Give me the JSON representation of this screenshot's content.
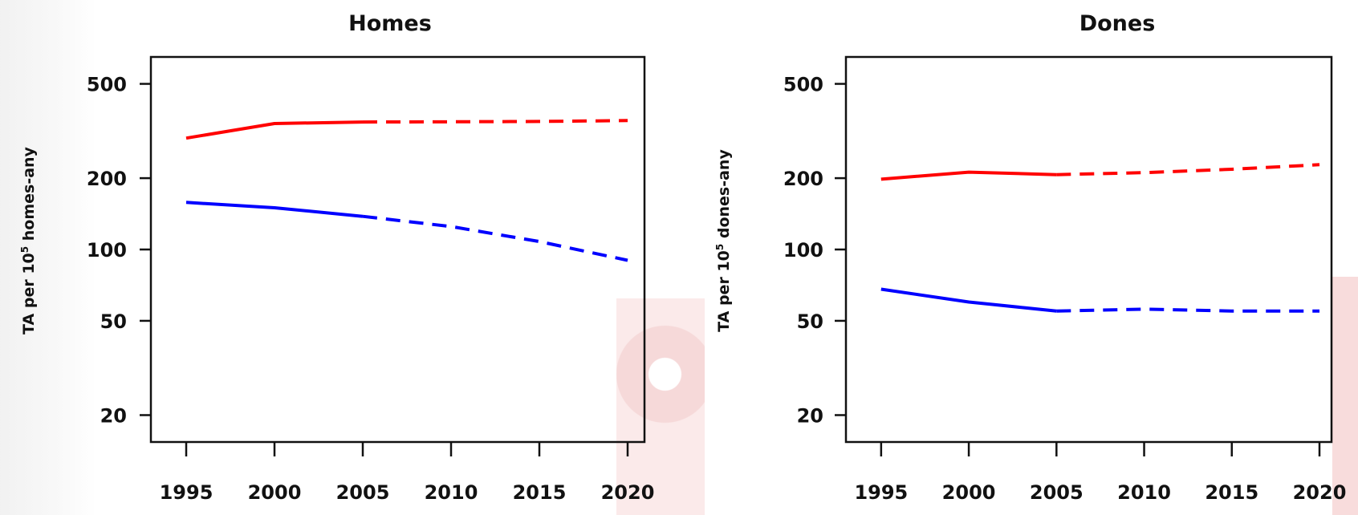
{
  "chart_data": [
    {
      "type": "line",
      "title": "Homes",
      "ylabel": {
        "pre": "TA per 10",
        "sup": "5",
        "post": " homes-any"
      },
      "y_scale": "log",
      "ylim": [
        18,
        560
      ],
      "yticks": [
        20,
        50,
        100,
        200,
        500
      ],
      "xlim": [
        1994,
        2020
      ],
      "xticks": [
        1995,
        2000,
        2005,
        2010,
        2015,
        2020
      ],
      "grid": false,
      "series": [
        {
          "color": "#ff0000",
          "segments": [
            {
              "style": "solid",
              "x": [
                1995,
                2000,
                2005
              ],
              "y": [
                295,
                340,
                345
              ]
            },
            {
              "style": "dashed",
              "x": [
                2005,
                2010,
                2015,
                2020
              ],
              "y": [
                345,
                346,
                347,
                350
              ]
            }
          ]
        },
        {
          "color": "#0000ff",
          "segments": [
            {
              "style": "solid",
              "x": [
                1995,
                2000,
                2005
              ],
              "y": [
                158,
                150,
                138
              ]
            },
            {
              "style": "dashed",
              "x": [
                2005,
                2010,
                2015,
                2020
              ],
              "y": [
                138,
                125,
                108,
                90
              ]
            }
          ]
        }
      ]
    },
    {
      "type": "line",
      "title": "Dones",
      "ylabel": {
        "pre": "TA per 10",
        "sup": "5",
        "post": " dones-any"
      },
      "y_scale": "log",
      "ylim": [
        18,
        560
      ],
      "yticks": [
        20,
        50,
        100,
        200,
        500
      ],
      "xlim": [
        1994,
        2020
      ],
      "xticks": [
        1995,
        2000,
        2005,
        2010,
        2015,
        2020
      ],
      "grid": false,
      "series": [
        {
          "color": "#ff0000",
          "segments": [
            {
              "style": "solid",
              "x": [
                1995,
                2000,
                2005
              ],
              "y": [
                198,
                212,
                207
              ]
            },
            {
              "style": "dashed",
              "x": [
                2005,
                2010,
                2015,
                2020
              ],
              "y": [
                207,
                211,
                218,
                228
              ]
            }
          ]
        },
        {
          "color": "#0000ff",
          "segments": [
            {
              "style": "solid",
              "x": [
                1995,
                2000,
                2005
              ],
              "y": [
                68,
                60,
                55
              ]
            },
            {
              "style": "dashed",
              "x": [
                2005,
                2010,
                2015,
                2020
              ],
              "y": [
                55,
                56,
                55,
                55
              ]
            }
          ]
        }
      ]
    }
  ]
}
